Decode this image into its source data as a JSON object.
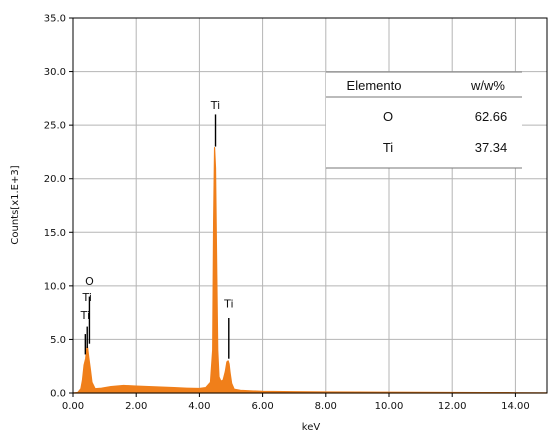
{
  "chart_data": {
    "type": "line",
    "title": "",
    "xlabel": "keV",
    "ylabel": "Counts[x1.E+3]",
    "xlim": [
      0.0,
      15.0
    ],
    "ylim": [
      0.0,
      35.0
    ],
    "x_ticks": [
      "0.00",
      "2.00",
      "4.00",
      "6.00",
      "8.00",
      "10.00",
      "12.00",
      "14.00"
    ],
    "y_ticks": [
      "0.0",
      "5.0",
      "10.0",
      "15.0",
      "20.0",
      "25.0",
      "30.0",
      "35.0"
    ],
    "grid": true,
    "series_color": "#F07F1A",
    "series": [
      {
        "x": [
          0.0,
          0.15,
          0.25,
          0.3,
          0.35,
          0.4,
          0.45,
          0.5,
          0.55,
          0.6,
          0.7,
          0.9,
          1.2,
          1.6,
          2.0,
          2.4,
          2.8,
          3.2,
          3.6,
          4.0,
          4.2,
          4.35,
          4.42,
          4.45,
          4.48,
          4.51,
          4.55,
          4.58,
          4.62,
          4.68,
          4.75,
          4.82,
          4.87,
          4.91,
          4.94,
          4.97,
          5.02,
          5.1,
          5.3,
          5.6,
          6.0,
          7.0,
          8.0,
          9.0,
          10.0,
          11.0,
          12.0,
          13.0,
          14.0,
          15.0
        ],
        "y": [
          0.0,
          0.05,
          0.4,
          1.2,
          2.6,
          3.2,
          4.5,
          3.3,
          2.2,
          1.0,
          0.4,
          0.45,
          0.6,
          0.7,
          0.65,
          0.6,
          0.55,
          0.5,
          0.45,
          0.42,
          0.5,
          1.0,
          4.0,
          16.0,
          22.9,
          21.0,
          11.0,
          4.0,
          1.5,
          1.1,
          1.2,
          2.0,
          2.9,
          3.0,
          2.7,
          1.9,
          0.9,
          0.35,
          0.25,
          0.2,
          0.15,
          0.12,
          0.1,
          0.08,
          0.07,
          0.06,
          0.05,
          0.04,
          0.03,
          0.02
        ]
      }
    ],
    "annotations": [
      {
        "text": "Ti",
        "x": 4.51,
        "label_y": 26.5,
        "line_top": 26.0,
        "line_bottom": 23.0
      },
      {
        "text": "Ti",
        "x": 4.93,
        "label_y": 8.0,
        "line_top": 7.0,
        "line_bottom": 3.2
      },
      {
        "text": "O",
        "x": 0.52,
        "label_y": 10.1,
        "line_top": 9.0,
        "line_bottom": 4.6
      },
      {
        "text": "Ti",
        "x": 0.45,
        "label_y": 8.6,
        "line_top": 6.2,
        "line_bottom": 4.2
      },
      {
        "text": "Ti",
        "x": 0.39,
        "label_y": 6.9,
        "line_top": 5.5,
        "line_bottom": 3.6
      }
    ],
    "table": {
      "headers": [
        "Elemento",
        "w/w%"
      ],
      "rows": [
        [
          "O",
          "62.66"
        ],
        [
          "Ti",
          "37.34"
        ]
      ]
    }
  }
}
